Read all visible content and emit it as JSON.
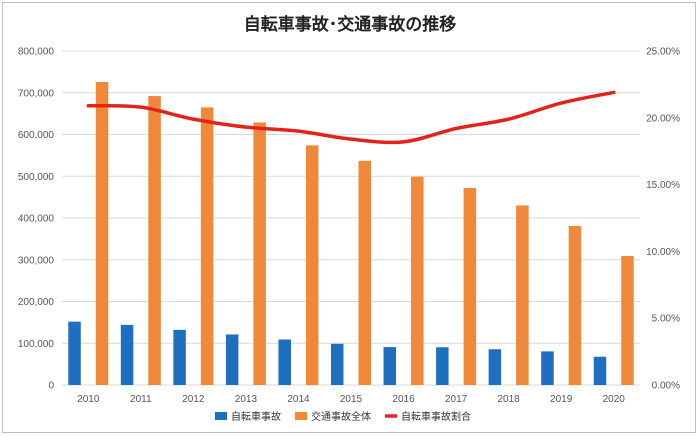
{
  "chart_data": {
    "type": "bar",
    "title": "自転車事故･交通事故の推移",
    "categories": [
      "2010",
      "2011",
      "2012",
      "2013",
      "2014",
      "2015",
      "2016",
      "2017",
      "2018",
      "2019",
      "2020"
    ],
    "series": [
      {
        "name": "自転車事故",
        "kind": "bar",
        "axis": "left",
        "color": "#1f6fc1",
        "values": [
          151700,
          144000,
          132000,
          121000,
          109000,
          98700,
          90800,
          90400,
          85600,
          80500,
          67700
        ]
      },
      {
        "name": "交通事故全体",
        "kind": "bar",
        "axis": "left",
        "color": "#f0883a",
        "values": [
          725900,
          692000,
          665000,
          629000,
          574000,
          537000,
          499000,
          472000,
          430000,
          381000,
          309000
        ]
      },
      {
        "name": "自転車事故割合",
        "kind": "line",
        "axis": "right",
        "color": "#e2231a",
        "values": [
          0.209,
          0.208,
          0.199,
          0.193,
          0.19,
          0.184,
          0.182,
          0.192,
          0.199,
          0.211,
          0.219
        ]
      }
    ],
    "y_left": {
      "min": 0,
      "max": 800000,
      "step": 100000,
      "tick_labels": [
        "0",
        "100,000",
        "200,000",
        "300,000",
        "400,000",
        "500,000",
        "600,000",
        "700,000",
        "800,000"
      ]
    },
    "y_right": {
      "min": 0,
      "max": 0.25,
      "step": 0.05,
      "tick_labels": [
        "0.00%",
        "5.00%",
        "10.00%",
        "15.00%",
        "20.00%",
        "25.00%"
      ]
    },
    "grid": true,
    "legend_position": "bottom"
  }
}
